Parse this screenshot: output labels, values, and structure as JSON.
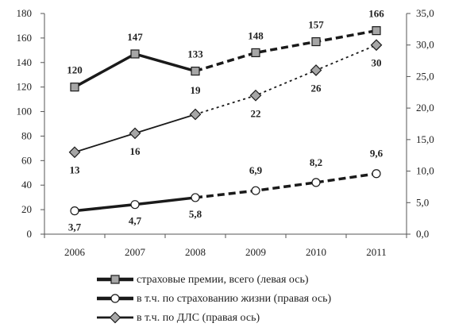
{
  "chart_data": {
    "type": "line",
    "categories": [
      "2006",
      "2007",
      "2008",
      "2009",
      "2010",
      "2011"
    ],
    "forecast_from_index": 2,
    "y_left": {
      "range": [
        0,
        180
      ],
      "ticks": [
        "0",
        "20",
        "40",
        "60",
        "80",
        "100",
        "120",
        "140",
        "160",
        "180"
      ]
    },
    "y_right": {
      "range": [
        0,
        35
      ],
      "ticks": [
        "0,0",
        "5,0",
        "10,0",
        "15,0",
        "20,0",
        "25,0",
        "30,0",
        "35,0"
      ]
    },
    "grid": false,
    "legend_position": "bottom",
    "series": [
      {
        "name": "страховые премии, всего (левая ось)",
        "axis": "left",
        "marker": "square",
        "values": [
          120,
          147,
          133,
          148,
          157,
          166
        ],
        "labels": [
          "120",
          "147",
          "133",
          "148",
          "157",
          "166"
        ]
      },
      {
        "name": "в т.ч. по страхованию жизни (правая ось)",
        "axis": "right",
        "marker": "circle",
        "values": [
          3.7,
          4.7,
          5.8,
          6.9,
          8.2,
          9.6
        ],
        "labels": [
          "3,7",
          "4,7",
          "5,8",
          "6,9",
          "8,2",
          "9,6"
        ]
      },
      {
        "name": "в т.ч. по ДЛС (правая ось)",
        "axis": "right",
        "marker": "diamond",
        "values": [
          13,
          16,
          19,
          22,
          26,
          30
        ],
        "labels": [
          "13",
          "16",
          "19",
          "22",
          "26",
          "30"
        ]
      }
    ]
  },
  "colors": {
    "line": "#1a1a1a",
    "marker_fill": "#a6a6a6",
    "circle_fill": "#ffffff",
    "axis": "#555555"
  }
}
